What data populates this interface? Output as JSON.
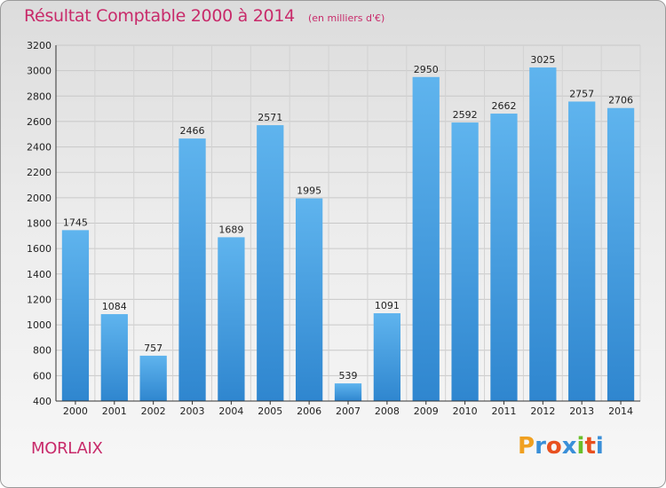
{
  "header": {
    "title": "Résultat Comptable 2000 à 2014",
    "subtitle": "(en milliers d'€)"
  },
  "footer": {
    "city": "MORLAIX",
    "logo_text": "Proxiti",
    "logo_letters": [
      "P",
      "r",
      "o",
      "x",
      "i",
      "t",
      "i"
    ],
    "logo_colors": [
      "#f0a020",
      "#3a8fd8",
      "#e8501f",
      "#3a8fd8",
      "#6abf2a",
      "#e8501f",
      "#3a8fd8"
    ]
  },
  "colors": {
    "bar": "#4a9fe3",
    "bar_light": "#5fb4ee",
    "bar_dark": "#2f86cf",
    "title": "#c82a6a"
  },
  "chart_data": {
    "type": "bar",
    "title": "Résultat Comptable 2000 à 2014",
    "subtitle": "(en milliers d'€)",
    "categories": [
      "2000",
      "2001",
      "2002",
      "2003",
      "2004",
      "2005",
      "2006",
      "2007",
      "2008",
      "2009",
      "2010",
      "2011",
      "2012",
      "2013",
      "2014"
    ],
    "values": [
      1745,
      1084,
      757,
      2466,
      1689,
      2571,
      1995,
      539,
      1091,
      2950,
      2592,
      2662,
      3025,
      2757,
      2706
    ],
    "ylim": [
      400,
      3200
    ],
    "yticks": [
      400,
      600,
      800,
      1000,
      1200,
      1400,
      1600,
      1800,
      2000,
      2200,
      2400,
      2600,
      2800,
      3000,
      3200
    ],
    "grid": true,
    "xlabel": "",
    "ylabel": ""
  }
}
